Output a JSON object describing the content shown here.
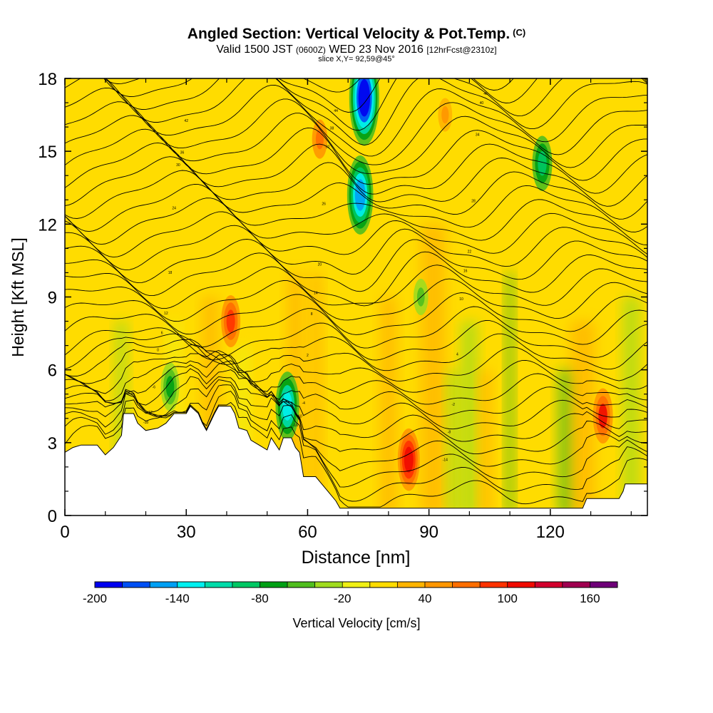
{
  "header": {
    "title": "Angled Section: Vertical Velocity & Pot.Temp.",
    "title_units": "(C)",
    "valid_prefix": "Valid 1500 JST",
    "valid_utc": "(0600Z)",
    "valid_date": "WED 23 Nov 2016",
    "forecast": "[12hrFcst@2310z]",
    "slice": "slice X,Y= 92,59@45°"
  },
  "chart_data": {
    "type": "heatmap",
    "xlabel": "Distance [nm]",
    "ylabel": "Height [Kft MSL]",
    "xlim": [
      0,
      144
    ],
    "ylim": [
      0,
      18
    ],
    "x_ticks": [
      0,
      30,
      60,
      90,
      120
    ],
    "x_tick_labels": [
      "0",
      "30",
      "60",
      "90",
      "120"
    ],
    "y_ticks": [
      0,
      3,
      6,
      9,
      12,
      15,
      18
    ],
    "y_tick_labels": [
      "0",
      "3",
      "6",
      "9",
      "12",
      "15",
      "18"
    ],
    "grid": false,
    "colorbar": {
      "label": "Vertical Velocity [cm/s]",
      "levels": [
        -200,
        -180,
        -160,
        -140,
        -120,
        -100,
        -80,
        -60,
        -40,
        -20,
        0,
        20,
        40,
        60,
        80,
        100,
        120,
        140,
        160,
        180
      ],
      "tick_values": [
        -200,
        -140,
        -80,
        -20,
        40,
        100,
        160
      ],
      "tick_labels": [
        "-200",
        "-140",
        "-80",
        "-20",
        "40",
        "100",
        "160"
      ],
      "colors": [
        "#0000f0",
        "#0050f5",
        "#00a0f5",
        "#00f0f0",
        "#00dcaa",
        "#00c864",
        "#00a014",
        "#50be1e",
        "#a0dc1e",
        "#f0f014",
        "#ffdc00",
        "#ffb400",
        "#ff9600",
        "#ff6e00",
        "#ff3200",
        "#f00a00",
        "#d2002d",
        "#a00050",
        "#6e0078"
      ]
    },
    "terrain": [
      [
        0,
        2.6
      ],
      [
        2,
        2.8
      ],
      [
        4,
        2.9
      ],
      [
        8,
        2.9
      ],
      [
        10,
        2.5
      ],
      [
        12,
        2.8
      ],
      [
        14,
        3.3
      ],
      [
        14.5,
        4.2
      ],
      [
        17,
        4.2
      ],
      [
        18,
        3.8
      ],
      [
        20,
        3.5
      ],
      [
        23,
        3.6
      ],
      [
        25,
        3.8
      ],
      [
        27,
        4.2
      ],
      [
        30,
        4.2
      ],
      [
        31,
        4.5
      ],
      [
        33,
        4.2
      ],
      [
        34,
        3.8
      ],
      [
        35,
        3.5
      ],
      [
        37,
        4.2
      ],
      [
        38,
        4.5
      ],
      [
        41,
        4.5
      ],
      [
        42,
        4.2
      ],
      [
        43,
        3.6
      ],
      [
        45,
        3.5
      ],
      [
        46,
        3.1
      ],
      [
        48,
        2.9
      ],
      [
        50,
        2.7
      ],
      [
        51,
        3.2
      ],
      [
        53,
        2.7
      ],
      [
        54,
        3.2
      ],
      [
        56,
        3.2
      ],
      [
        57,
        2.8
      ],
      [
        58,
        2.6
      ],
      [
        59,
        1.6
      ],
      [
        62,
        1.6
      ],
      [
        63,
        1.4
      ],
      [
        65,
        1.0
      ],
      [
        67,
        0.6
      ],
      [
        68,
        0.3
      ],
      [
        128,
        0.3
      ],
      [
        129,
        0.7
      ],
      [
        137,
        0.7
      ],
      [
        138,
        1.0
      ],
      [
        138.5,
        1.3
      ],
      [
        144,
        1.3
      ]
    ],
    "velocity_features": [
      {
        "x": 74,
        "y": 17.2,
        "value": -190
      },
      {
        "x": 73,
        "y": 13.2,
        "value": -150
      },
      {
        "x": 118,
        "y": 14.5,
        "value": -100
      },
      {
        "x": 55,
        "y": 4.5,
        "value": -130
      },
      {
        "x": 26,
        "y": 5.3,
        "value": -80
      },
      {
        "x": 88,
        "y": 9.0,
        "value": -60
      },
      {
        "x": 133,
        "y": 4.1,
        "value": 100
      },
      {
        "x": 85,
        "y": 2.3,
        "value": 110
      },
      {
        "x": 41,
        "y": 8.0,
        "value": 90
      },
      {
        "x": 63,
        "y": 15.5,
        "value": 70
      },
      {
        "x": 94,
        "y": 16.5,
        "value": 50
      }
    ],
    "theta_contours": {
      "levels": [
        "-18",
        "-16",
        "-14",
        "-12",
        "-10",
        "-8",
        "-6",
        "-4",
        "-2",
        "0",
        "2",
        "4",
        "6",
        "8",
        "10",
        "12",
        "14",
        "16",
        "18",
        "20",
        "22",
        "24",
        "26",
        "28",
        "30",
        "32",
        "34",
        "36",
        "38",
        "40",
        "42",
        "44",
        "46",
        "48"
      ],
      "line_color": "#000000"
    }
  }
}
